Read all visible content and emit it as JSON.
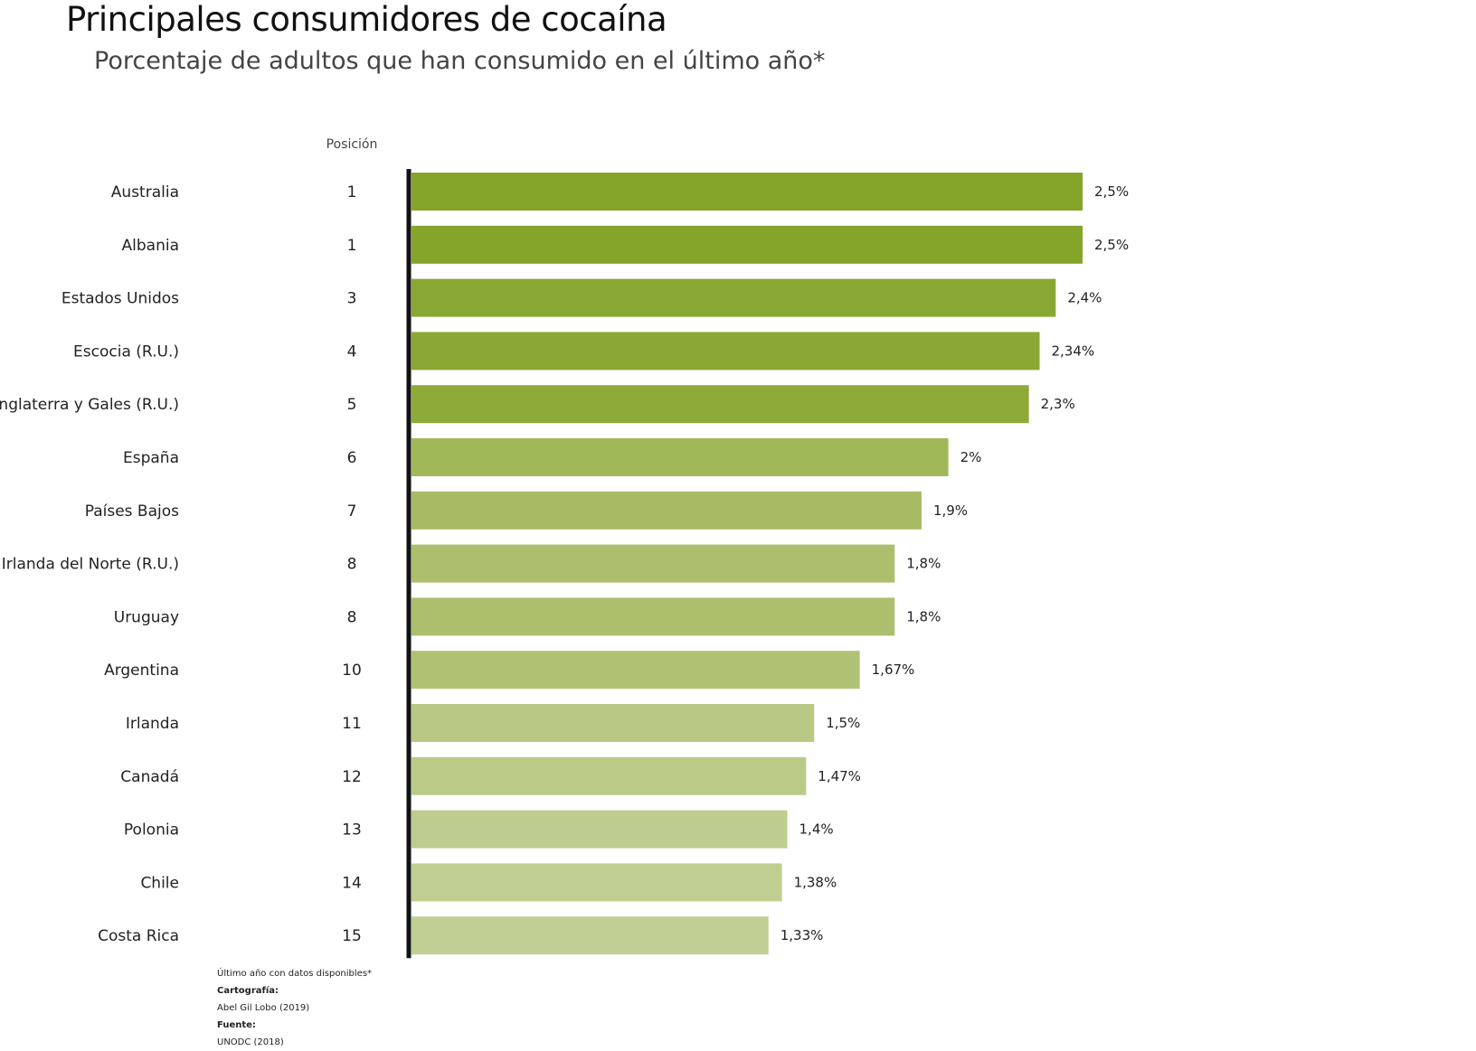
{
  "title": "Principales consumidores de cocaína",
  "subtitle": "Porcentaje de adultos que han consumido en el último año*",
  "footer": {
    "note": "Último año con datos disponibles*",
    "cartography_label": "Cartografía:",
    "cartography_value": "Abel Gil Lobo (2019)",
    "source_label": "Fuente:",
    "source_value": "UNODC (2018)"
  },
  "chart_data": {
    "type": "bar",
    "orientation": "horizontal",
    "title": "Principales consumidores de cocaína",
    "subtitle": "Porcentaje de adultos que han consumido en el último año*",
    "position_header": "Posición",
    "xlim": [
      0,
      2.5
    ],
    "categories": [
      "Australia",
      "Albania",
      "Estados Unidos",
      "Escocia (R.U.)",
      "Inglaterra y Gales (R.U.)",
      "España",
      "Países Bajos",
      "Irlanda del Norte (R.U.)",
      "Uruguay",
      "Argentina",
      "Irlanda",
      "Canadá",
      "Polonia",
      "Chile",
      "Costa Rica"
    ],
    "positions": [
      "1",
      "1",
      "3",
      "4",
      "5",
      "6",
      "7",
      "8",
      "8",
      "10",
      "11",
      "12",
      "13",
      "14",
      "15"
    ],
    "values": [
      2.5,
      2.5,
      2.4,
      2.34,
      2.3,
      2.0,
      1.9,
      1.8,
      1.8,
      1.67,
      1.5,
      1.47,
      1.4,
      1.38,
      1.33
    ],
    "value_labels": [
      "2,5%",
      "2,5%",
      "2,4%",
      "2,34%",
      "2,3%",
      "2%",
      "1,9%",
      "1,8%",
      "1,8%",
      "1,67%",
      "1,5%",
      "1,47%",
      "1,4%",
      "1,38%",
      "1,33%"
    ],
    "colors": [
      "#84a42a",
      "#84a42a",
      "#89a733",
      "#8aa833",
      "#8eab3a",
      "#a1b859",
      "#a6bb63",
      "#abbf6d",
      "#abbf6d",
      "#afc273",
      "#b8c985",
      "#bacb88",
      "#bdcd8f",
      "#bfce91",
      "#c0cf94"
    ],
    "axis_color": "#111111"
  }
}
